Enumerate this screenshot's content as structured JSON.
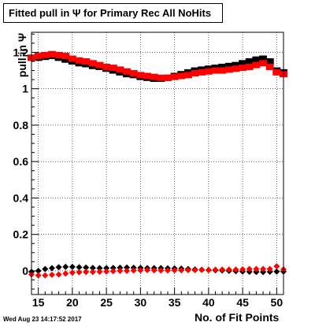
{
  "chart_data": {
    "type": "scatter",
    "title": "Fitted pull in Ψ  for Primary Rec All NoHits",
    "xlabel": "No. of Fit Points",
    "ylabel": "pull in Ψ",
    "xlim": [
      14,
      51
    ],
    "ylim": [
      -0.13,
      1.31
    ],
    "xticks": [
      15,
      20,
      25,
      30,
      35,
      40,
      45,
      50
    ],
    "yticks": [
      0,
      0.2,
      0.4,
      0.6,
      0.8,
      1,
      1.2
    ],
    "ytick_labels": [
      "0",
      "0.2",
      "0.4",
      "0.6",
      "0.8",
      "1",
      "1.2"
    ],
    "grid": true,
    "timestamp": "Wed Aug 23 14:17:52 2017",
    "x": [
      14,
      15,
      16,
      17,
      18,
      19,
      20,
      21,
      22,
      23,
      24,
      25,
      26,
      27,
      28,
      29,
      30,
      31,
      32,
      33,
      34,
      35,
      36,
      37,
      38,
      39,
      40,
      41,
      42,
      43,
      44,
      45,
      46,
      47,
      48,
      49,
      50,
      51
    ],
    "series": [
      {
        "color": "#000000",
        "marker": "square",
        "values": [
          1.17,
          1.17,
          1.175,
          1.18,
          1.17,
          1.16,
          1.15,
          1.14,
          1.135,
          1.125,
          1.12,
          1.11,
          1.1,
          1.09,
          1.08,
          1.075,
          1.065,
          1.06,
          1.055,
          1.055,
          1.06,
          1.07,
          1.08,
          1.09,
          1.1,
          1.105,
          1.11,
          1.115,
          1.12,
          1.125,
          1.13,
          1.14,
          1.15,
          1.16,
          1.165,
          1.15,
          1.1,
          1.09
        ]
      },
      {
        "color": "#ff0000",
        "marker": "square",
        "values": [
          1.17,
          1.18,
          1.185,
          1.19,
          1.185,
          1.18,
          1.165,
          1.155,
          1.15,
          1.14,
          1.13,
          1.12,
          1.115,
          1.105,
          1.095,
          1.085,
          1.075,
          1.07,
          1.065,
          1.06,
          1.06,
          1.065,
          1.07,
          1.075,
          1.085,
          1.09,
          1.095,
          1.1,
          1.1,
          1.105,
          1.11,
          1.115,
          1.12,
          1.13,
          1.14,
          1.12,
          1.09,
          1.08
        ]
      },
      {
        "color": "#000000",
        "marker": "diamond",
        "values": [
          -0.005,
          0.0,
          0.01,
          0.015,
          0.02,
          0.022,
          0.022,
          0.02,
          0.018,
          0.016,
          0.015,
          0.015,
          0.016,
          0.017,
          0.018,
          0.017,
          0.016,
          0.015,
          0.015,
          0.015,
          0.014,
          0.013,
          0.012,
          0.01,
          0.008,
          0.006,
          0.004,
          0.003,
          0.002,
          0.0,
          -0.002,
          -0.004,
          -0.005,
          -0.006,
          -0.007,
          -0.005,
          -0.004,
          -0.004
        ]
      },
      {
        "color": "#ff0000",
        "marker": "diamond",
        "values": [
          -0.02,
          -0.025,
          -0.025,
          -0.022,
          -0.02,
          -0.015,
          -0.01,
          -0.008,
          -0.006,
          -0.006,
          -0.005,
          -0.004,
          -0.002,
          0.0,
          0.0,
          0.002,
          0.003,
          0.004,
          0.003,
          0.002,
          0.002,
          0.003,
          0.003,
          0.004,
          0.004,
          0.005,
          0.005,
          0.006,
          0.007,
          0.007,
          0.007,
          0.008,
          0.01,
          0.01,
          0.01,
          0.01,
          0.025,
          0.008
        ]
      }
    ]
  }
}
